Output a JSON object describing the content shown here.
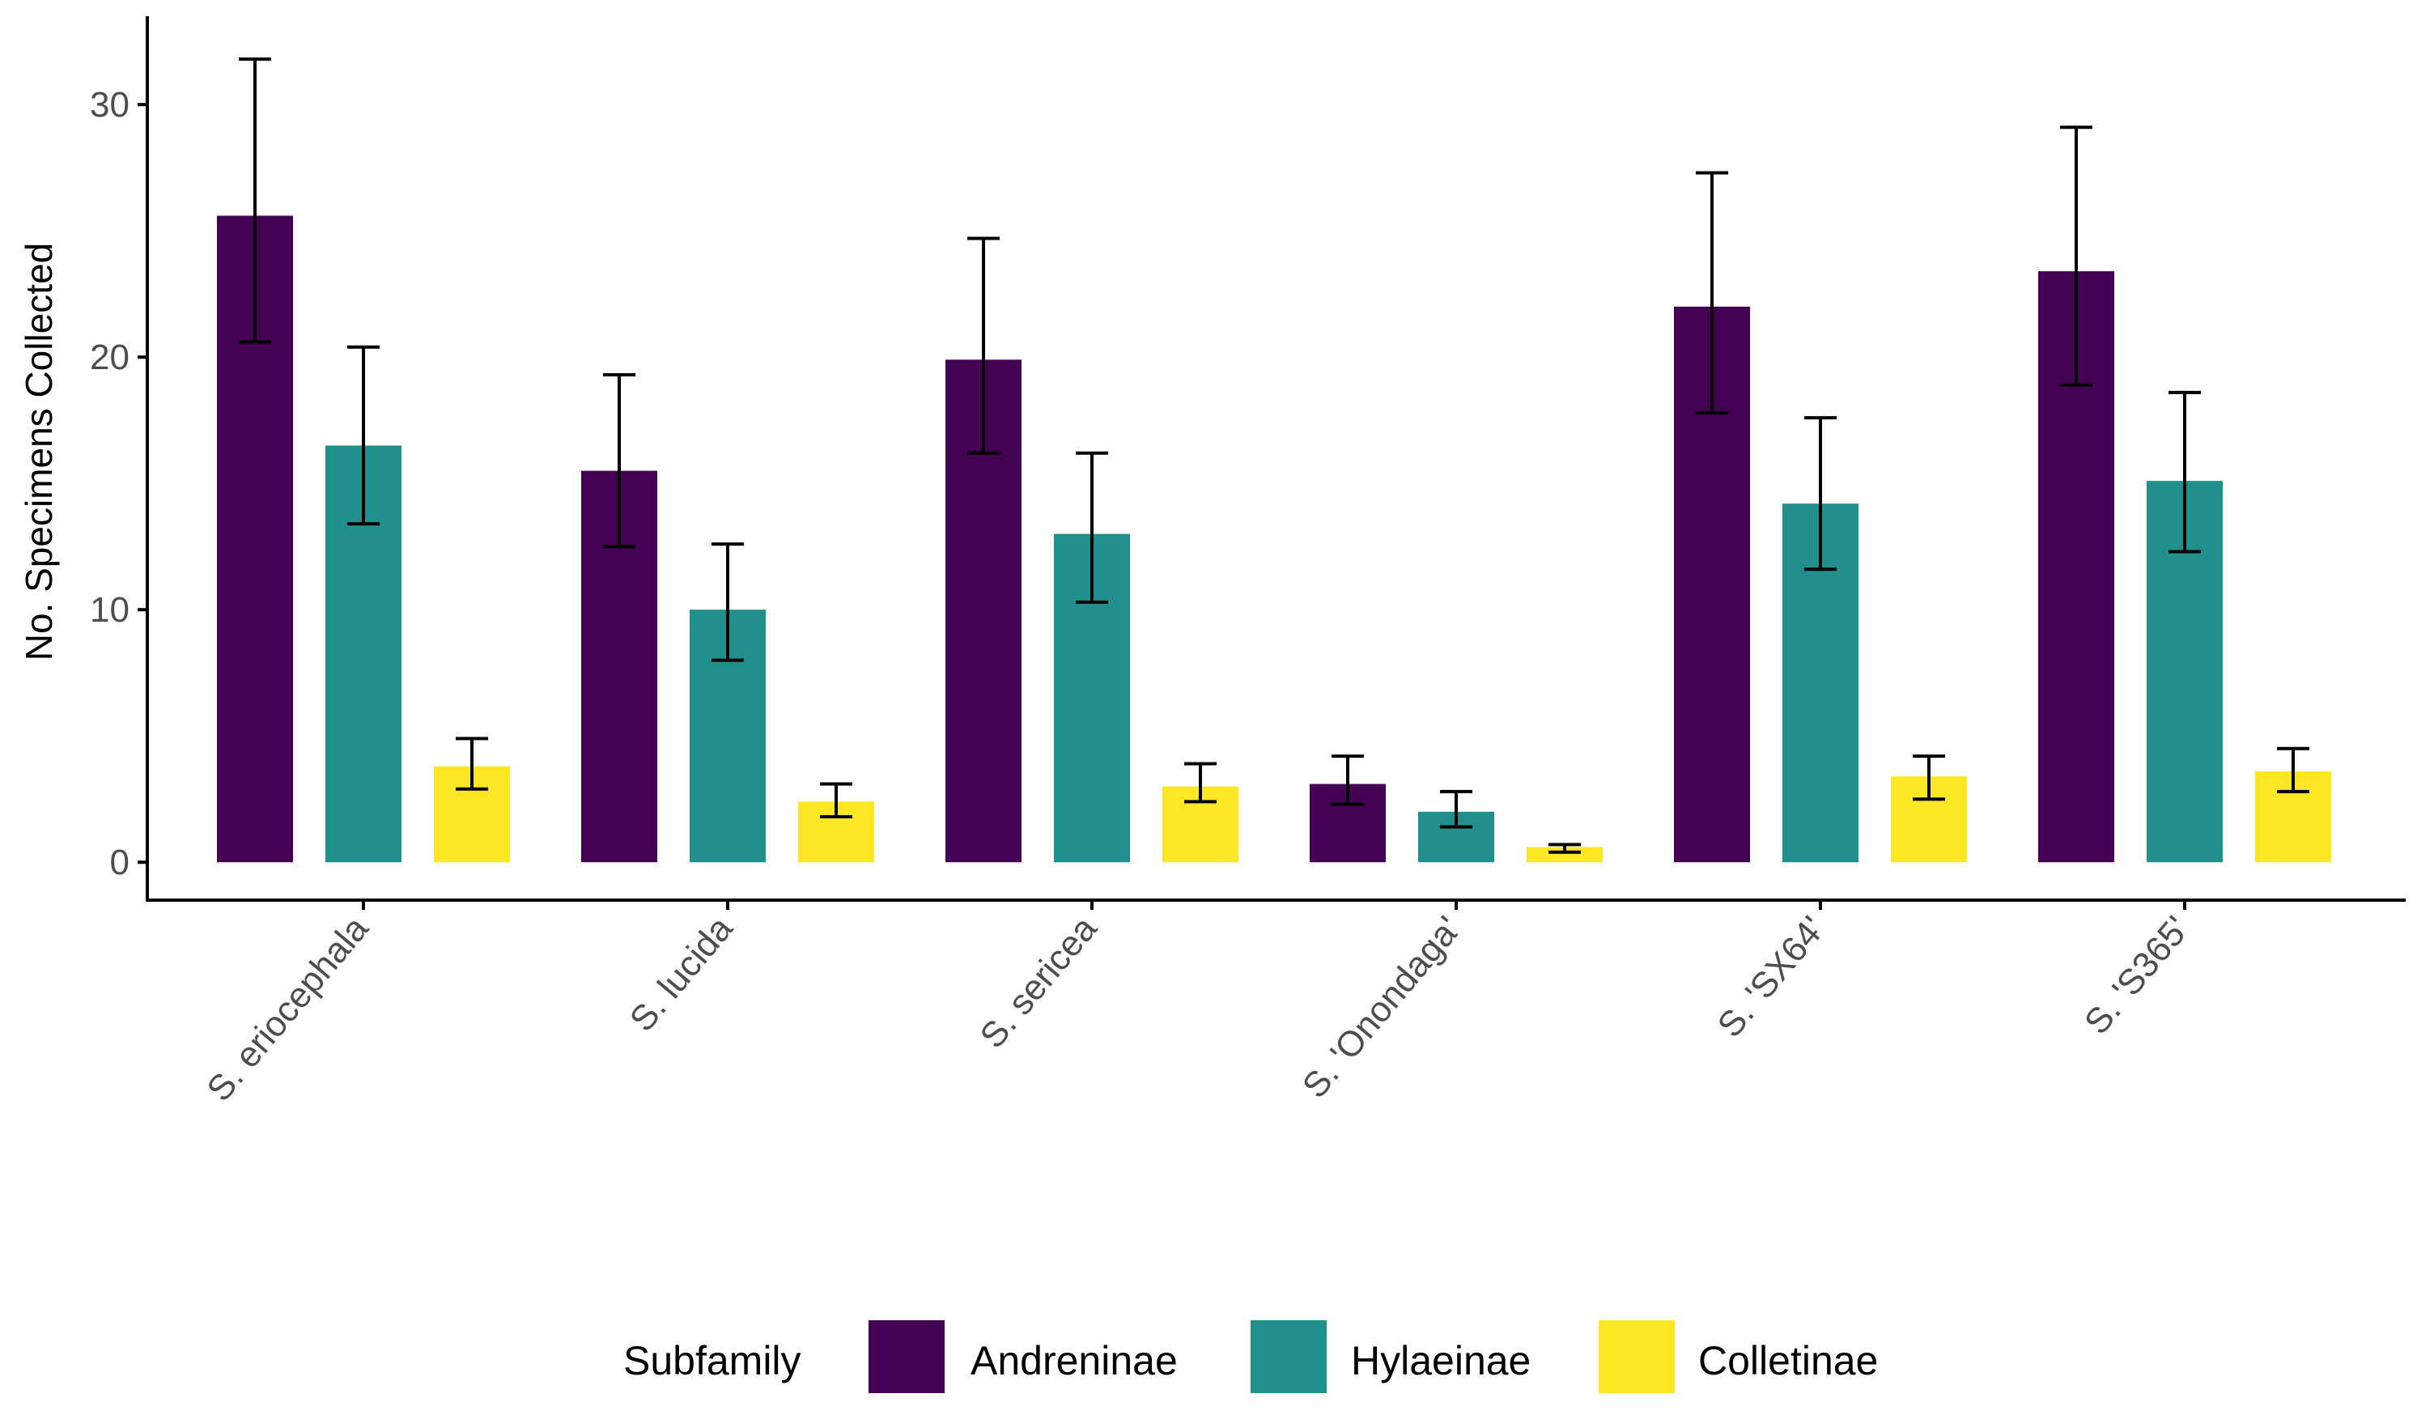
{
  "chart_data": {
    "type": "bar",
    "title": "",
    "xlabel": "",
    "ylabel": "No. Specimens Collected",
    "ylim": [
      -1.5,
      33.5
    ],
    "yticks": [
      0,
      10,
      20,
      30
    ],
    "grid": false,
    "categories": [
      "S. eriocephala",
      "S. lucida",
      "S. sericea",
      "S. 'Onondaga'",
      "S. 'SX64'",
      "S. 'S365'"
    ],
    "series": [
      {
        "name": "Andreninae",
        "color": "#440154",
        "values": [
          25.6,
          15.5,
          19.9,
          3.1,
          22.0,
          23.4
        ],
        "err_low": [
          20.6,
          12.5,
          16.2,
          2.3,
          17.8,
          18.9
        ],
        "err_high": [
          31.8,
          19.3,
          24.7,
          4.2,
          27.3,
          29.1
        ]
      },
      {
        "name": "Hylaeinae",
        "color": "#21908C",
        "values": [
          16.5,
          10.0,
          13.0,
          2.0,
          14.2,
          15.1
        ],
        "err_low": [
          13.4,
          8.0,
          10.3,
          1.4,
          11.6,
          12.3
        ],
        "err_high": [
          20.4,
          12.6,
          16.2,
          2.8,
          17.6,
          18.6
        ]
      },
      {
        "name": "Colletinae",
        "color": "#FDE725",
        "values": [
          3.8,
          2.4,
          3.0,
          0.6,
          3.4,
          3.6
        ],
        "err_low": [
          2.9,
          1.8,
          2.4,
          0.4,
          2.5,
          2.8
        ],
        "err_high": [
          4.9,
          3.1,
          3.9,
          0.7,
          4.2,
          4.5
        ]
      }
    ],
    "legend": {
      "title": "Subfamily",
      "position": "bottom"
    }
  }
}
